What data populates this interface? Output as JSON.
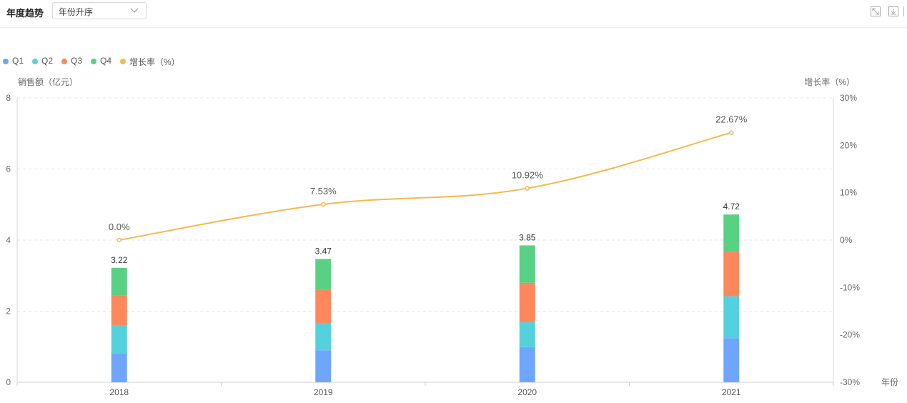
{
  "header": {
    "title": "年度趋势",
    "sort_select": {
      "value": "年份升序"
    }
  },
  "legend": [
    {
      "name": "Q1",
      "color": "#6ea6fd"
    },
    {
      "name": "Q2",
      "color": "#55d1dd"
    },
    {
      "name": "Q3",
      "color": "#fe875c"
    },
    {
      "name": "Q4",
      "color": "#58d184"
    },
    {
      "name": "增长率（%）",
      "color": "#f5b94c"
    }
  ],
  "chart_data": {
    "type": "bar",
    "stacked": true,
    "categories": [
      "2018",
      "2019",
      "2020",
      "2021"
    ],
    "xlabel": "年份",
    "ylabel": "销售额（亿元）",
    "ylabel_right": "增长率（%）",
    "ylim": [
      0,
      8
    ],
    "y_ticks": [
      "0",
      "2",
      "4",
      "6",
      "8"
    ],
    "ylim_right": [
      -30,
      30
    ],
    "y_ticks_right": [
      "-30%",
      "-20%",
      "-10%",
      "0%",
      "10%",
      "20%",
      "30%"
    ],
    "series": [
      {
        "name": "Q1",
        "type": "bar",
        "color": "#6ea6fd",
        "values": [
          0.82,
          0.9,
          0.99,
          1.24
        ]
      },
      {
        "name": "Q2",
        "type": "bar",
        "color": "#55d1dd",
        "values": [
          0.79,
          0.77,
          0.7,
          1.18
        ]
      },
      {
        "name": "Q3",
        "type": "bar",
        "color": "#fe875c",
        "values": [
          0.83,
          0.94,
          1.11,
          1.26
        ]
      },
      {
        "name": "Q4",
        "type": "bar",
        "color": "#58d184",
        "values": [
          0.78,
          0.86,
          1.05,
          1.04
        ]
      },
      {
        "name": "增长率（%）",
        "type": "line",
        "axis": "right",
        "color": "#f5b94c",
        "values": [
          0.0,
          7.53,
          10.92,
          22.67
        ]
      }
    ],
    "totals": [
      3.22,
      3.47,
      3.85,
      4.72
    ],
    "total_labels": [
      "3.22",
      "3.47",
      "3.85",
      "4.72"
    ],
    "rate_labels": [
      "0.0%",
      "7.53%",
      "10.92%",
      "22.67%"
    ],
    "grid": true,
    "legend_position": "top-left"
  }
}
